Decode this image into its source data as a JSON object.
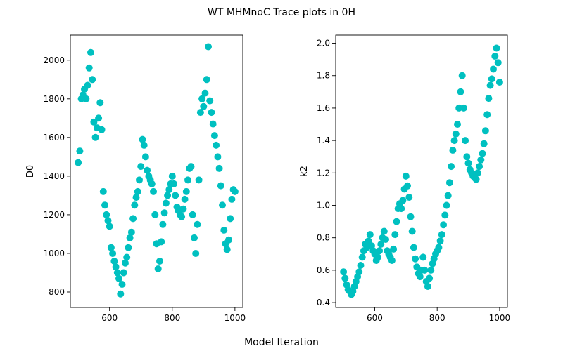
{
  "figure": {
    "title": "WT MHMnoC Trace plots in 0H",
    "xlabel": "Model Iteration",
    "marker_color": "#00c0c0"
  },
  "chart_data": [
    {
      "type": "scatter",
      "ylabel": "D0",
      "xlim": [
        475,
        1025
      ],
      "ylim": [
        720,
        2130
      ],
      "xticks": [
        600,
        800,
        1000
      ],
      "yticks": [
        800,
        1000,
        1200,
        1400,
        1600,
        1800,
        2000
      ],
      "series": [
        {
          "x": [
            500,
            505,
            510,
            515,
            520,
            525,
            530,
            535,
            540,
            545,
            550,
            555,
            560,
            565,
            570,
            575,
            580,
            585,
            590,
            595,
            600,
            605,
            610,
            615,
            620,
            625,
            630,
            635,
            640,
            645,
            650,
            655,
            660,
            665,
            670,
            675,
            680,
            685,
            690,
            695,
            700,
            705,
            710,
            715,
            720,
            725,
            730,
            735,
            740,
            745,
            750,
            755,
            760,
            765,
            770,
            775,
            780,
            785,
            790,
            795,
            800,
            805,
            810,
            815,
            820,
            825,
            830,
            835,
            840,
            845,
            850,
            855,
            860,
            865,
            870,
            875,
            880,
            885,
            890,
            895,
            900,
            905,
            910,
            915,
            920,
            925,
            930,
            935,
            940,
            945,
            950,
            955,
            960,
            965,
            970,
            975,
            980,
            985,
            990,
            995,
            1000
          ],
          "y": [
            1470,
            1530,
            1800,
            1820,
            1850,
            1800,
            1870,
            1960,
            2040,
            1900,
            1680,
            1600,
            1650,
            1700,
            1780,
            1640,
            1320,
            1250,
            1200,
            1170,
            1140,
            1030,
            1000,
            960,
            930,
            900,
            870,
            790,
            840,
            900,
            950,
            980,
            1030,
            1080,
            1110,
            1180,
            1250,
            1290,
            1320,
            1380,
            1450,
            1590,
            1560,
            1500,
            1430,
            1400,
            1380,
            1360,
            1320,
            1200,
            1050,
            920,
            960,
            1060,
            1150,
            1210,
            1260,
            1300,
            1330,
            1360,
            1400,
            1360,
            1300,
            1240,
            1220,
            1200,
            1190,
            1230,
            1280,
            1320,
            1380,
            1440,
            1450,
            1200,
            1080,
            1000,
            1150,
            1380,
            1730,
            1800,
            1760,
            1830,
            1900,
            2070,
            1790,
            1730,
            1670,
            1610,
            1560,
            1500,
            1440,
            1350,
            1250,
            1120,
            1050,
            1020,
            1070,
            1180,
            1280,
            1330,
            1320
          ]
        }
      ]
    },
    {
      "type": "scatter",
      "ylabel": "k2",
      "xlim": [
        475,
        1025
      ],
      "ylim": [
        0.37,
        2.05
      ],
      "xticks": [
        600,
        800,
        1000
      ],
      "yticks": [
        0.4,
        0.6,
        0.8,
        1.0,
        1.2,
        1.4,
        1.6,
        1.8,
        2.0
      ],
      "series": [
        {
          "x": [
            500,
            505,
            510,
            515,
            520,
            525,
            530,
            535,
            540,
            545,
            550,
            555,
            560,
            565,
            570,
            575,
            580,
            585,
            590,
            595,
            600,
            605,
            610,
            615,
            620,
            625,
            630,
            635,
            640,
            645,
            650,
            655,
            660,
            665,
            670,
            675,
            680,
            685,
            690,
            695,
            700,
            705,
            710,
            715,
            720,
            725,
            730,
            735,
            740,
            745,
            750,
            755,
            760,
            765,
            770,
            775,
            780,
            785,
            790,
            795,
            800,
            805,
            810,
            815,
            820,
            825,
            830,
            835,
            840,
            845,
            850,
            855,
            860,
            865,
            870,
            875,
            880,
            885,
            890,
            895,
            900,
            905,
            910,
            915,
            920,
            925,
            930,
            935,
            940,
            945,
            950,
            955,
            960,
            965,
            970,
            975,
            980,
            985,
            990,
            995,
            1000
          ],
          "y": [
            0.59,
            0.55,
            0.51,
            0.48,
            0.47,
            0.45,
            0.47,
            0.5,
            0.53,
            0.56,
            0.59,
            0.63,
            0.68,
            0.72,
            0.76,
            0.74,
            0.78,
            0.82,
            0.75,
            0.72,
            0.7,
            0.66,
            0.68,
            0.72,
            0.76,
            0.8,
            0.84,
            0.79,
            0.72,
            0.7,
            0.68,
            0.66,
            0.73,
            0.82,
            0.9,
            0.98,
            1.01,
            0.98,
            1.03,
            1.1,
            1.18,
            1.12,
            1.05,
            0.93,
            0.84,
            0.74,
            0.67,
            0.62,
            0.58,
            0.56,
            0.6,
            0.68,
            0.6,
            0.53,
            0.5,
            0.55,
            0.6,
            0.64,
            0.67,
            0.7,
            0.72,
            0.74,
            0.78,
            0.82,
            0.88,
            0.94,
            1.0,
            1.06,
            1.14,
            1.24,
            1.34,
            1.4,
            1.44,
            1.5,
            1.6,
            1.7,
            1.8,
            1.6,
            1.4,
            1.3,
            1.26,
            1.22,
            1.2,
            1.18,
            1.17,
            1.16,
            1.2,
            1.24,
            1.28,
            1.32,
            1.38,
            1.46,
            1.56,
            1.66,
            1.74,
            1.78,
            1.84,
            1.92,
            1.97,
            1.88,
            1.76
          ]
        }
      ]
    }
  ]
}
